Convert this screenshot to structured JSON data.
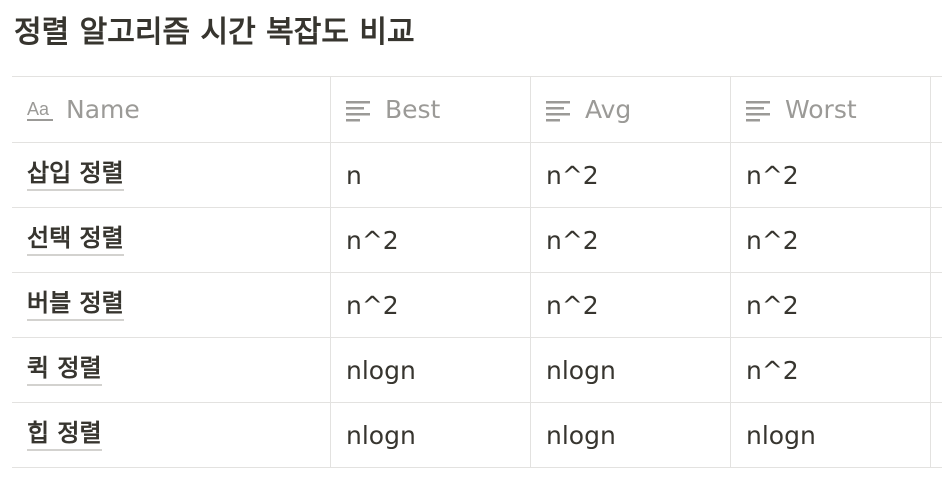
{
  "page": {
    "title": "정렬 알고리즘 시간 복잡도 비교"
  },
  "table": {
    "columns": [
      {
        "label": "Name",
        "icon": "title-property-icon"
      },
      {
        "label": "Best",
        "icon": "text-property-icon"
      },
      {
        "label": "Avg",
        "icon": "text-property-icon"
      },
      {
        "label": "Worst",
        "icon": "text-property-icon"
      }
    ],
    "rows": [
      {
        "name": "삽입 정렬",
        "best": "n",
        "avg": "n^2",
        "worst": "n^2"
      },
      {
        "name": "선택 정렬",
        "best": "n^2",
        "avg": "n^2",
        "worst": "n^2"
      },
      {
        "name": "버블 정렬",
        "best": "n^2",
        "avg": "n^2",
        "worst": "n^2"
      },
      {
        "name": "퀵 정렬",
        "best": "nlogn",
        "avg": "nlogn",
        "worst": "n^2"
      },
      {
        "name": "힙 정렬",
        "best": "nlogn",
        "avg": "nlogn",
        "worst": "nlogn"
      }
    ]
  },
  "colors": {
    "text": "#37352f",
    "muted": "#9b9a97",
    "border": "#e3e2e0",
    "underline": "#d3d2cf"
  }
}
